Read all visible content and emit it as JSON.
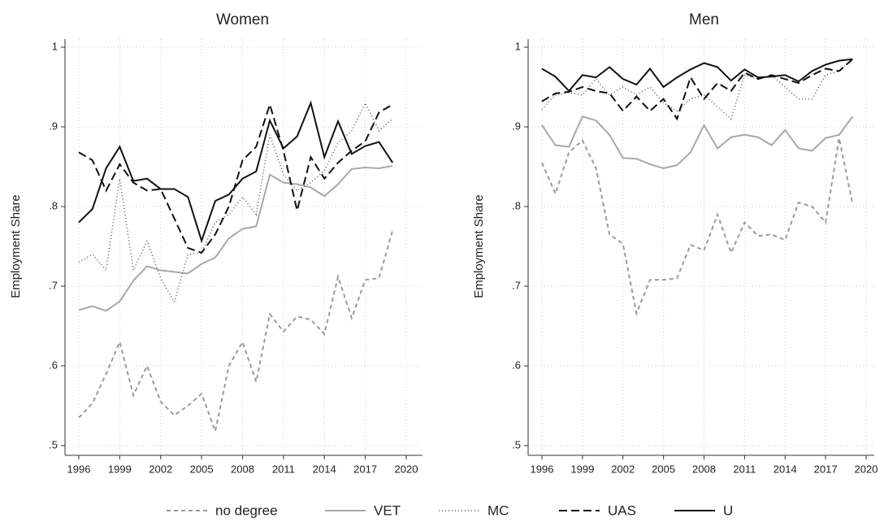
{
  "chart_data": [
    {
      "type": "line",
      "title": "Women",
      "ylabel": "Employment Share",
      "x": [
        1996,
        1997,
        1998,
        1999,
        2000,
        2001,
        2002,
        2003,
        2004,
        2005,
        2006,
        2007,
        2008,
        2009,
        2010,
        2011,
        2012,
        2013,
        2014,
        2015,
        2016,
        2017,
        2018,
        2019
      ],
      "xlim": [
        1996,
        2020
      ],
      "xticks": [
        1996,
        1999,
        2002,
        2005,
        2008,
        2011,
        2014,
        2017,
        2020
      ],
      "ylim": [
        0.5,
        1
      ],
      "yticks": [
        {
          "value": 0.5,
          "label": ".5"
        },
        {
          "value": 0.6,
          "label": ".6"
        },
        {
          "value": 0.7,
          "label": ".7"
        },
        {
          "value": 0.8,
          "label": ".8"
        },
        {
          "value": 0.9,
          "label": ".9"
        },
        1
      ],
      "grid": true,
      "series": [
        {
          "name": "no degree",
          "color": "#9a9a9a",
          "dash": "5,4",
          "width": 2,
          "values": [
            0.535,
            0.553,
            0.59,
            0.63,
            0.563,
            0.6,
            0.555,
            0.538,
            0.55,
            0.565,
            0.518,
            0.6,
            0.63,
            0.58,
            0.665,
            0.643,
            0.662,
            0.658,
            0.64,
            0.712,
            0.66,
            0.708,
            0.71,
            0.77
          ]
        },
        {
          "name": "VET",
          "color": "#a8a8a8",
          "dash": "none",
          "width": 2,
          "values": [
            0.67,
            0.675,
            0.669,
            0.681,
            0.707,
            0.725,
            0.72,
            0.718,
            0.716,
            0.728,
            0.736,
            0.76,
            0.772,
            0.775,
            0.84,
            0.83,
            0.828,
            0.824,
            0.813,
            0.828,
            0.847,
            0.849,
            0.848,
            0.851
          ]
        },
        {
          "name": "MC",
          "color": "#555555",
          "dash": "1,3",
          "width": 1.5,
          "values": [
            0.73,
            0.74,
            0.72,
            0.835,
            0.72,
            0.757,
            0.71,
            0.68,
            0.74,
            0.742,
            0.78,
            0.79,
            0.812,
            0.79,
            0.89,
            0.84,
            0.82,
            0.83,
            0.845,
            0.88,
            0.895,
            0.93,
            0.895,
            0.91
          ]
        },
        {
          "name": "UAS",
          "color": "#111111",
          "dash": "10,5",
          "width": 2,
          "values": [
            0.868,
            0.858,
            0.82,
            0.853,
            0.83,
            0.82,
            0.822,
            0.785,
            0.748,
            0.742,
            0.765,
            0.8,
            0.858,
            0.875,
            0.928,
            0.87,
            0.795,
            0.862,
            0.835,
            0.855,
            0.87,
            0.882,
            0.918,
            0.928
          ]
        },
        {
          "name": "U",
          "color": "#111111",
          "dash": "none",
          "width": 2,
          "values": [
            0.78,
            0.797,
            0.848,
            0.875,
            0.832,
            0.835,
            0.822,
            0.822,
            0.812,
            0.757,
            0.807,
            0.815,
            0.835,
            0.844,
            0.908,
            0.873,
            0.888,
            0.93,
            0.862,
            0.907,
            0.866,
            0.876,
            0.881,
            0.855
          ]
        }
      ]
    },
    {
      "type": "line",
      "title": "Men",
      "ylabel": "Employment Share",
      "x": [
        1996,
        1997,
        1998,
        1999,
        2000,
        2001,
        2002,
        2003,
        2004,
        2005,
        2006,
        2007,
        2008,
        2009,
        2010,
        2011,
        2012,
        2013,
        2014,
        2015,
        2016,
        2017,
        2018,
        2019
      ],
      "xlim": [
        1996,
        2020
      ],
      "xticks": [
        1996,
        1999,
        2002,
        2005,
        2008,
        2011,
        2014,
        2017,
        2020
      ],
      "ylim": [
        0.5,
        1
      ],
      "yticks": [
        {
          "value": 0.5,
          "label": ".5"
        },
        {
          "value": 0.6,
          "label": ".6"
        },
        {
          "value": 0.7,
          "label": ".7"
        },
        {
          "value": 0.8,
          "label": ".8"
        },
        {
          "value": 0.9,
          "label": ".9"
        },
        1
      ],
      "grid": true,
      "series": [
        {
          "color": "#9a9a9a",
          "dash": "5,4",
          "width": 2,
          "values": [
            0.855,
            0.816,
            0.868,
            0.883,
            0.848,
            0.765,
            0.753,
            0.666,
            0.708,
            0.708,
            0.71,
            0.752,
            0.745,
            0.79,
            0.742,
            0.78,
            0.763,
            0.765,
            0.758,
            0.805,
            0.8,
            0.78,
            0.886,
            0.803
          ]
        },
        {
          "color": "#a8a8a8",
          "dash": "none",
          "width": 2,
          "values": [
            0.902,
            0.877,
            0.875,
            0.913,
            0.908,
            0.89,
            0.861,
            0.86,
            0.853,
            0.848,
            0.852,
            0.868,
            0.902,
            0.873,
            0.887,
            0.89,
            0.887,
            0.877,
            0.896,
            0.873,
            0.87,
            0.886,
            0.89,
            0.913
          ]
        },
        {
          "color": "#555555",
          "dash": "1,3",
          "width": 1.5,
          "values": [
            0.922,
            0.94,
            0.943,
            0.94,
            0.96,
            0.94,
            0.95,
            0.94,
            0.95,
            0.93,
            0.92,
            0.935,
            0.94,
            0.925,
            0.91,
            0.965,
            0.96,
            0.965,
            0.95,
            0.935,
            0.935,
            0.965,
            0.97,
            0.985
          ]
        },
        {
          "color": "#111111",
          "dash": "10,5",
          "width": 2,
          "values": [
            0.932,
            0.942,
            0.944,
            0.95,
            0.945,
            0.942,
            0.92,
            0.938,
            0.92,
            0.935,
            0.91,
            0.962,
            0.935,
            0.955,
            0.945,
            0.968,
            0.96,
            0.965,
            0.96,
            0.955,
            0.965,
            0.973,
            0.97,
            0.985
          ]
        },
        {
          "color": "#111111",
          "dash": "none",
          "width": 2,
          "values": [
            0.973,
            0.963,
            0.945,
            0.965,
            0.962,
            0.975,
            0.96,
            0.953,
            0.973,
            0.95,
            0.962,
            0.972,
            0.98,
            0.975,
            0.958,
            0.972,
            0.962,
            0.963,
            0.965,
            0.957,
            0.97,
            0.978,
            0.983,
            0.985
          ]
        }
      ]
    }
  ]
}
